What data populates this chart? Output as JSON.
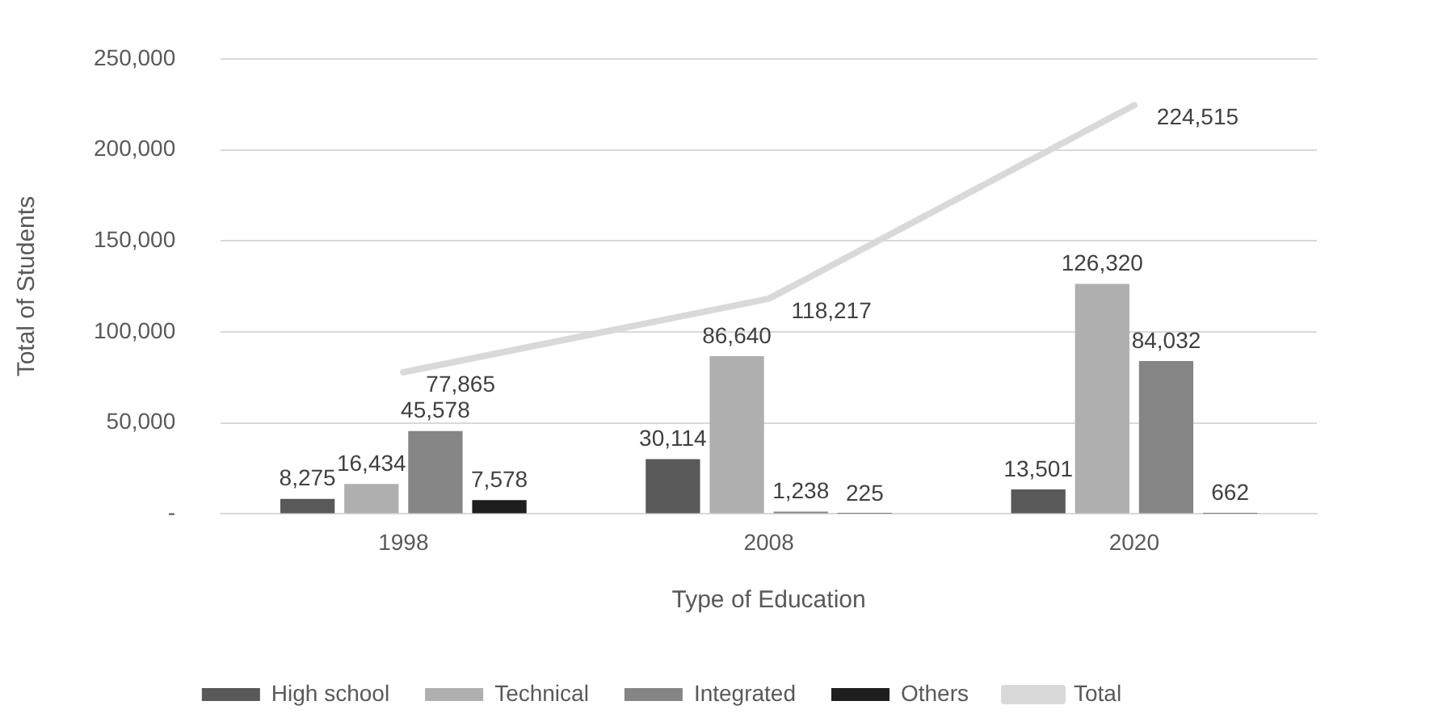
{
  "chart_data": {
    "type": "bar",
    "xlabel": "Type of Education",
    "ylabel": "Total of Students",
    "categories": [
      "1998",
      "2008",
      "2020"
    ],
    "series": [
      {
        "name": "High school",
        "color": "#595959",
        "values": [
          8275,
          30114,
          13501
        ],
        "value_labels": [
          "8,275",
          "30,114",
          "13,501"
        ]
      },
      {
        "name": "Technical",
        "color": "#afafaf",
        "values": [
          16434,
          86640,
          126320
        ],
        "value_labels": [
          "16,434",
          "86,640",
          "126,320"
        ]
      },
      {
        "name": "Integrated",
        "color": "#858585",
        "values": [
          45578,
          1238,
          84032
        ],
        "value_labels": [
          "45,578",
          "1,238",
          "84,032"
        ]
      },
      {
        "name": "Others",
        "color": "#1e1e1e",
        "values": [
          7578,
          225,
          662
        ],
        "value_labels": [
          "7,578",
          "225",
          "662"
        ]
      },
      {
        "name": "Total",
        "type": "line",
        "color": "#d9d9d9",
        "values": [
          77865,
          118217,
          224515
        ],
        "value_labels": [
          "77,865",
          "118,217",
          "224,515"
        ]
      }
    ],
    "ylim": [
      0,
      250000
    ],
    "yticks": [
      {
        "value": 0,
        "label": "-"
      },
      {
        "value": 50000,
        "label": "50,000"
      },
      {
        "value": 100000,
        "label": "100,000"
      },
      {
        "value": 150000,
        "label": "150,000"
      },
      {
        "value": 200000,
        "label": "200,000"
      },
      {
        "value": 250000,
        "label": "250,000"
      }
    ],
    "grid": "y",
    "legend": "bottom"
  }
}
